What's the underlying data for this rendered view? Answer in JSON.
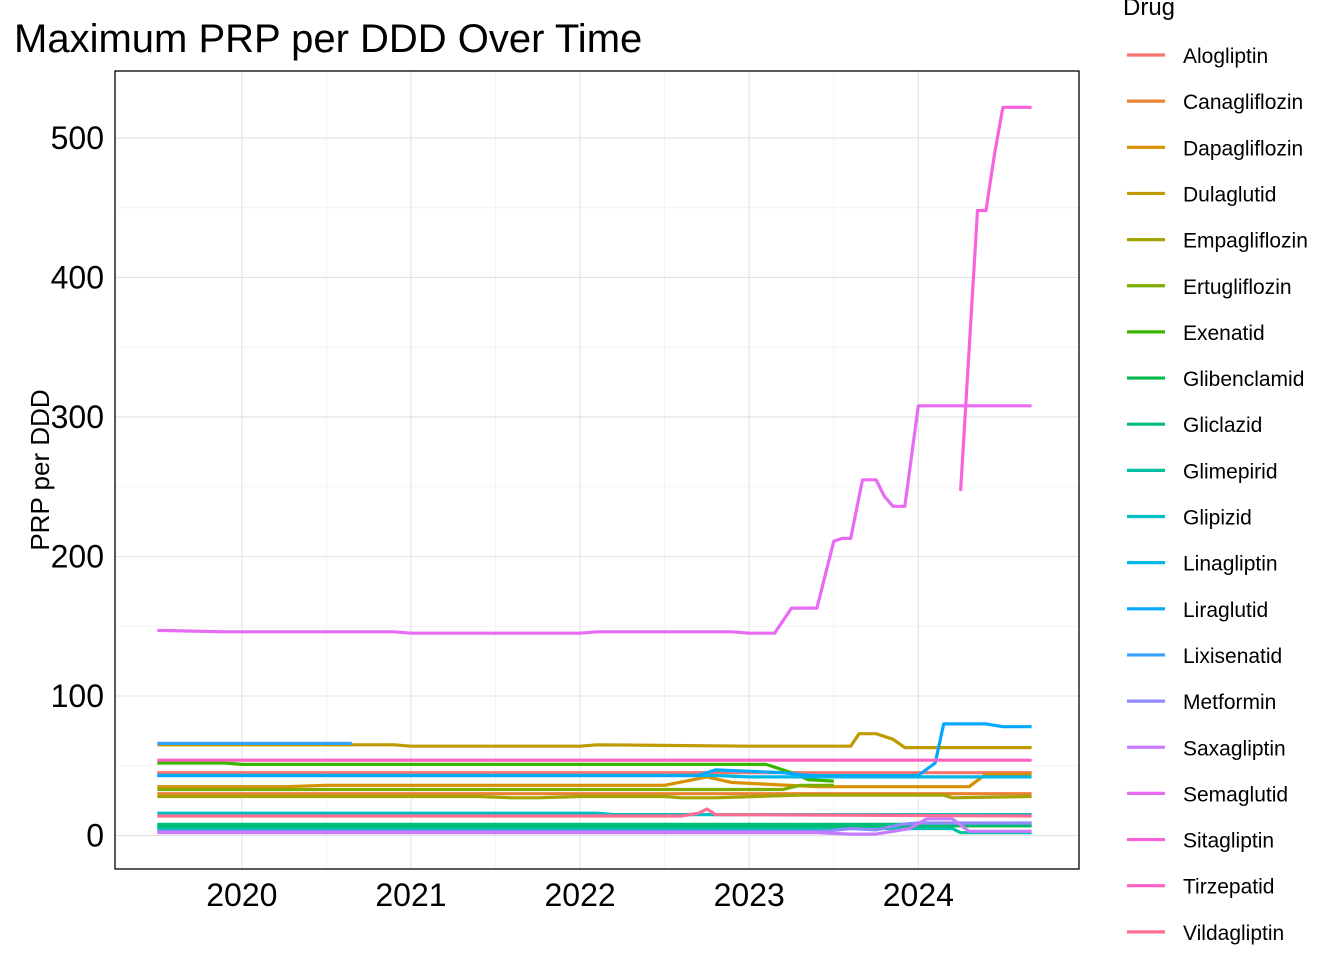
{
  "chart_data": {
    "type": "line",
    "title": "Maximum PRP per DDD Over Time",
    "xlabel": "",
    "ylabel": "PRP per DDD",
    "legend_title": "Drug",
    "legend_position": "right",
    "grid": true,
    "xlim": [
      2019.25,
      2024.95
    ],
    "ylim": [
      -24,
      548
    ],
    "x_ticks": [
      2020,
      2021,
      2022,
      2023,
      2024
    ],
    "y_ticks": [
      0,
      100,
      200,
      300,
      400,
      500
    ],
    "series": [
      {
        "name": "Alogliptin",
        "color": "#F8766D",
        "x": [
          2019.5,
          2024.67
        ],
        "y": [
          45,
          45
        ]
      },
      {
        "name": "Canagliflozin",
        "color": "#EA8331",
        "x": [
          2019.5,
          2024.67
        ],
        "y": [
          30,
          30
        ]
      },
      {
        "name": "Dapagliflozin",
        "color": "#D89000",
        "x": [
          2019.5,
          2020.25,
          2020.5,
          2022.5,
          2022.75,
          2022.9,
          2023.4,
          2024.2,
          2024.3,
          2024.4,
          2024.67
        ],
        "y": [
          35,
          35,
          36,
          36,
          42,
          38,
          35,
          35,
          35,
          44,
          44
        ]
      },
      {
        "name": "Dulaglutid",
        "color": "#C09B00",
        "x": [
          2019.5,
          2020.9,
          2021.0,
          2022.0,
          2022.1,
          2023.0,
          2023.6,
          2023.65,
          2023.75,
          2023.85,
          2023.92,
          2024.67
        ],
        "y": [
          65,
          65,
          64,
          64,
          65,
          64,
          64,
          73,
          73,
          69,
          63,
          63
        ]
      },
      {
        "name": "Empagliflozin",
        "color": "#A3A500",
        "x": [
          2019.5,
          2021.4,
          2021.6,
          2021.75,
          2022.0,
          2022.5,
          2022.6,
          2022.8,
          2023.3,
          2023.4,
          2024.15,
          2024.2,
          2024.67
        ],
        "y": [
          28,
          28,
          27,
          27,
          28,
          28,
          27,
          27,
          29,
          29,
          29,
          27,
          28
        ]
      },
      {
        "name": "Ertugliflozin",
        "color": "#7CAE00",
        "x": [
          2019.5,
          2023.2,
          2023.3,
          2023.5
        ],
        "y": [
          33,
          33,
          36,
          36
        ]
      },
      {
        "name": "Exenatid",
        "color": "#39B600",
        "x": [
          2019.5,
          2019.9,
          2020.0,
          2023.1,
          2023.25,
          2023.35,
          2023.5
        ],
        "y": [
          52,
          52,
          51,
          51,
          45,
          40,
          39
        ]
      },
      {
        "name": "Glibenclamid",
        "color": "#00BB4E",
        "x": [
          2019.5,
          2021.0,
          2021.2,
          2024.67
        ],
        "y": [
          6,
          6,
          7,
          7
        ]
      },
      {
        "name": "Gliclazid",
        "color": "#00BF7D",
        "x": [
          2019.5,
          2023.8,
          2024.0,
          2024.67
        ],
        "y": [
          8,
          8,
          8,
          8
        ]
      },
      {
        "name": "Glimepirid",
        "color": "#00C1A3",
        "x": [
          2019.5,
          2024.2,
          2024.25,
          2024.67
        ],
        "y": [
          5,
          5,
          2,
          2
        ]
      },
      {
        "name": "Glipizid",
        "color": "#00BFC4",
        "x": [
          2019.5,
          2022.1,
          2022.2,
          2024.67
        ],
        "y": [
          16,
          16,
          15,
          15
        ]
      },
      {
        "name": "Linagliptin",
        "color": "#00B8E7",
        "x": [
          2019.5,
          2022.0,
          2022.1,
          2022.8,
          2023.0,
          2023.2,
          2024.67
        ],
        "y": [
          43,
          43,
          43,
          43,
          42,
          42,
          42
        ]
      },
      {
        "name": "Liraglutid",
        "color": "#00A9FF",
        "x": [
          2019.5,
          2022.5,
          2022.7,
          2022.8,
          2023.2,
          2023.35,
          2023.9,
          2024.0,
          2024.1,
          2024.15,
          2024.2,
          2024.4,
          2024.5,
          2024.67
        ],
        "y": [
          43,
          43,
          43,
          47,
          45,
          43,
          43,
          43,
          52,
          80,
          80,
          80,
          78,
          78
        ]
      },
      {
        "name": "Lixisenatid",
        "color": "#35A2FF",
        "x": [
          2019.5,
          2020.65
        ],
        "y": [
          66,
          66
        ]
      },
      {
        "name": "Metformin",
        "color": "#8F8AFF",
        "x": [
          2019.5,
          2023.45,
          2023.6,
          2023.75,
          2023.9,
          2024.0,
          2024.67
        ],
        "y": [
          3,
          3,
          5,
          4,
          8,
          9,
          9
        ]
      },
      {
        "name": "Saxagliptin",
        "color": "#C77CFF",
        "x": [
          2019.5,
          2023.4,
          2023.6,
          2023.75,
          2023.95,
          2024.05,
          2024.2,
          2024.3,
          2024.67
        ],
        "y": [
          2,
          2,
          1,
          1,
          5,
          12,
          12,
          3,
          3
        ]
      },
      {
        "name": "Semaglutid",
        "color": "#E76BF3",
        "x": [
          2019.5,
          2019.9,
          2020.9,
          2021.0,
          2022.0,
          2022.1,
          2022.9,
          2023.0,
          2023.15,
          2023.25,
          2023.4,
          2023.5,
          2023.55,
          2023.6,
          2023.67,
          2023.75,
          2023.8,
          2023.85,
          2023.92,
          2024.0,
          2024.67
        ],
        "y": [
          147,
          146,
          146,
          145,
          145,
          146,
          146,
          145,
          145,
          163,
          163,
          211,
          213,
          213,
          255,
          255,
          243,
          236,
          236,
          308,
          308
        ]
      },
      {
        "name": "Sitagliptin",
        "color": "#FA62DB",
        "x": [
          2024.25,
          2024.35,
          2024.4,
          2024.45,
          2024.5,
          2024.67
        ],
        "y": [
          247,
          448,
          448,
          488,
          522,
          522
        ]
      },
      {
        "name": "Tirzepatid",
        "color": "#FF61C3",
        "x": [
          2019.5,
          2024.67
        ],
        "y": [
          54,
          54
        ]
      },
      {
        "name": "Vildagliptin",
        "color": "#FF6C91",
        "x": [
          2019.5,
          2022.6,
          2022.7,
          2022.75,
          2022.8,
          2024.67
        ],
        "y": [
          14,
          14,
          16,
          19,
          15,
          14
        ]
      }
    ]
  }
}
